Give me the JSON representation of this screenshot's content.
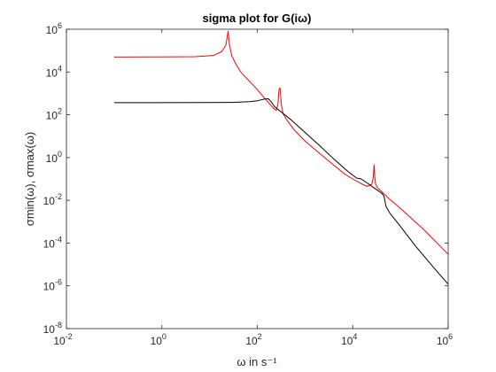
{
  "chart_data": {
    "type": "line",
    "title": "sigma plot for G(iω)",
    "xlabel": "ω in s⁻¹",
    "ylabel": "σmin(ω), σmax(ω)",
    "xscale": "log",
    "yscale": "log",
    "xlim": [
      0.01,
      1000000
    ],
    "ylim": [
      1e-08,
      1000000
    ],
    "x_ticks": [
      0.01,
      1,
      100,
      10000,
      1000000
    ],
    "y_ticks": [
      1e-08,
      1e-06,
      0.0001,
      0.01,
      1,
      100,
      10000,
      1000000
    ],
    "x_tick_labels": [
      {
        "base": "10",
        "exp": "-2"
      },
      {
        "base": "10",
        "exp": "0"
      },
      {
        "base": "10",
        "exp": "2"
      },
      {
        "base": "10",
        "exp": "4"
      },
      {
        "base": "10",
        "exp": "6"
      }
    ],
    "y_tick_labels": [
      {
        "base": "10",
        "exp": "-8"
      },
      {
        "base": "10",
        "exp": "-6"
      },
      {
        "base": "10",
        "exp": "-4"
      },
      {
        "base": "10",
        "exp": "-2"
      },
      {
        "base": "10",
        "exp": "0"
      },
      {
        "base": "10",
        "exp": "2"
      },
      {
        "base": "10",
        "exp": "4"
      },
      {
        "base": "10",
        "exp": "6"
      }
    ],
    "grid": false,
    "series": [
      {
        "color": "#ff0000",
        "x": [
          0.1,
          1,
          5,
          12,
          18,
          22,
          24.5,
          26,
          29,
          35,
          45,
          60,
          80,
          100,
          140,
          180,
          220,
          250,
          270,
          285,
          300,
          320,
          350,
          420,
          600,
          1000,
          2000,
          4000,
          7000,
          10000,
          15000,
          20000,
          25000,
          27000,
          28000,
          29000,
          30000,
          33000,
          40000,
          60000,
          100000,
          300000,
          1000000
        ],
        "y": [
          50000,
          50500,
          52000,
          59000,
          90000,
          180000,
          800000,
          200000,
          60000,
          25000,
          10000,
          5000,
          2600,
          1500,
          620,
          330,
          200,
          160,
          300,
          1500,
          1800,
          280,
          110,
          55,
          19,
          5.9,
          1.6,
          0.44,
          0.16,
          0.1,
          0.06,
          0.045,
          0.055,
          0.12,
          0.45,
          0.12,
          0.06,
          0.038,
          0.026,
          0.011,
          0.0042,
          0.00045,
          3e-05
        ]
      },
      {
        "color": "#000000",
        "x": [
          0.1,
          1,
          10,
          30,
          70,
          100,
          140,
          170,
          200,
          230,
          300,
          500,
          1000,
          2000,
          4000,
          8000,
          12000,
          15000,
          20000,
          30000,
          40000,
          45000,
          50000,
          60000,
          100000,
          200000,
          500000,
          1000000
        ],
        "y": [
          370,
          370,
          372,
          380,
          410,
          450,
          540,
          560,
          380,
          240,
          150,
          60,
          15,
          3.7,
          0.85,
          0.22,
          0.11,
          0.1,
          0.065,
          0.034,
          0.022,
          0.016,
          0.005,
          0.0025,
          0.0006,
          8e-05,
          7e-06,
          1.2e-06
        ]
      }
    ]
  }
}
